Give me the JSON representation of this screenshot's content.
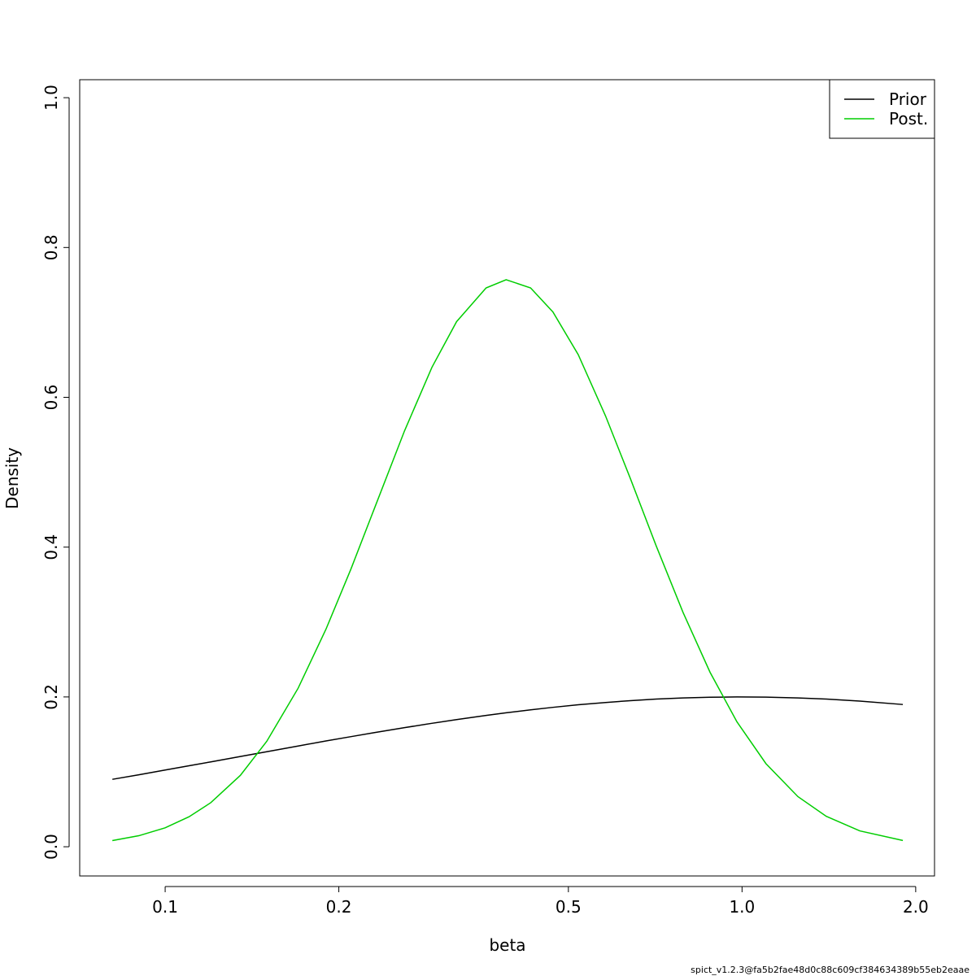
{
  "chart_data": {
    "type": "line",
    "x_label": "beta",
    "y_label": "Density",
    "x": [
      0.081,
      0.09,
      0.1,
      0.11,
      0.12,
      0.135,
      0.15,
      0.17,
      0.19,
      0.21,
      0.23,
      0.26,
      0.29,
      0.32,
      0.36,
      0.39,
      0.43,
      0.47,
      0.52,
      0.58,
      0.64,
      0.71,
      0.79,
      0.88,
      0.98,
      1.1,
      1.25,
      1.4,
      1.6,
      1.9
    ],
    "series": [
      {
        "name": "Prior",
        "color": "#000000",
        "values": [
          0.09,
          0.0961,
          0.1024,
          0.1081,
          0.1133,
          0.1205,
          0.1269,
          0.1345,
          0.1412,
          0.147,
          0.1522,
          0.159,
          0.1648,
          0.1697,
          0.1753,
          0.1788,
          0.1828,
          0.1861,
          0.1895,
          0.1926,
          0.195,
          0.1971,
          0.1986,
          0.1996,
          0.2,
          0.1998,
          0.1987,
          0.1972,
          0.1945,
          0.1899
        ]
      },
      {
        "name": "Post.",
        "color": "#00cd00",
        "values": [
          0.0082,
          0.0147,
          0.0253,
          0.04,
          0.0589,
          0.0953,
          0.1407,
          0.2116,
          0.2904,
          0.3711,
          0.4497,
          0.5553,
          0.64,
          0.701,
          0.746,
          0.757,
          0.746,
          0.714,
          0.657,
          0.575,
          0.492,
          0.4015,
          0.313,
          0.233,
          0.1667,
          0.111,
          0.0669,
          0.0406,
          0.0212,
          0.0084
        ]
      }
    ],
    "xlog": true,
    "xlim": [
      0.0711,
      2.156
    ],
    "ylim": [
      -0.039,
      1.024
    ],
    "xticks": [
      0.1,
      0.2,
      0.5,
      {
        "value": 1,
        "label": "1.0"
      },
      {
        "value": 2,
        "label": "2.0"
      }
    ],
    "yticks": [
      {
        "value": 0,
        "label": "0.0"
      },
      0.2,
      0.4,
      0.6,
      0.8,
      {
        "value": 1,
        "label": "1.0"
      }
    ],
    "legend": "top-right",
    "footnote": "spict_v1.2.3@fa5b2fae48d0c88c609cf384634389b55eb2eaae"
  }
}
